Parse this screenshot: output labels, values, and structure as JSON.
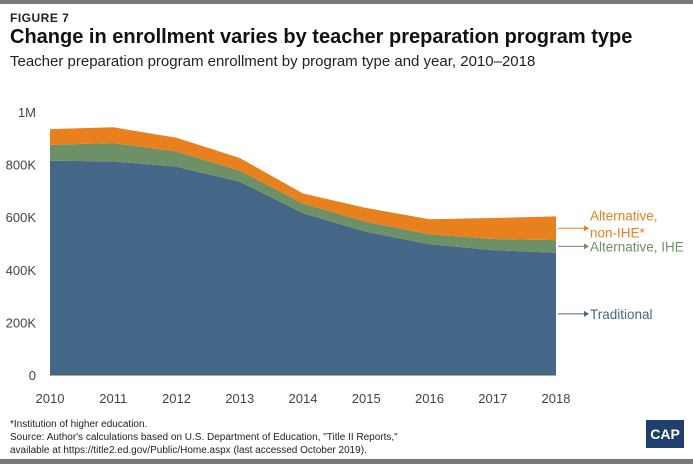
{
  "header": {
    "figure_label": "FIGURE 7",
    "title": "Change in enrollment varies by teacher preparation program type",
    "subtitle": "Teacher preparation program enrollment by program type and year, 2010–2018"
  },
  "chart_data": {
    "type": "area",
    "stacked": true,
    "categories": [
      "2010",
      "2011",
      "2012",
      "2013",
      "2014",
      "2015",
      "2016",
      "2017",
      "2018"
    ],
    "x": [
      2010,
      2011,
      2012,
      2013,
      2014,
      2015,
      2016,
      2017,
      2018
    ],
    "series": [
      {
        "name": "Traditional",
        "color": "#456788",
        "values": [
          815000,
          812000,
          792000,
          735000,
          615000,
          545000,
          497000,
          475000,
          465000
        ]
      },
      {
        "name": "Alternative, IHE",
        "color": "#6e9066",
        "values": [
          60000,
          70000,
          58000,
          42000,
          37000,
          37000,
          38000,
          42000,
          48000
        ]
      },
      {
        "name": "Alternative, non-IHE*",
        "color": "#e8801e",
        "values": [
          60000,
          60000,
          52000,
          48000,
          38000,
          53000,
          57000,
          80000,
          90000
        ]
      }
    ],
    "legend_labels": [
      {
        "series": "Alternative, non-IHE*",
        "lines": [
          "Alternative,",
          "non-IHE*"
        ],
        "color": "#e8801e"
      },
      {
        "series": "Alternative, IHE",
        "lines": [
          "Alternative, IHE"
        ],
        "color": "#6e9066"
      },
      {
        "series": "Traditional",
        "lines": [
          "Traditional"
        ],
        "color": "#456788"
      }
    ],
    "legend_placement": "right",
    "y_ticks": [
      {
        "value": 0,
        "label": "0"
      },
      {
        "value": 200000,
        "label": "200K"
      },
      {
        "value": 400000,
        "label": "400K"
      },
      {
        "value": 600000,
        "label": "600K"
      },
      {
        "value": 800000,
        "label": "800K"
      },
      {
        "value": 1000000,
        "label": "1M"
      }
    ],
    "ylim": [
      0,
      1000000
    ],
    "grid": false,
    "title": "",
    "xlabel": "",
    "ylabel": ""
  },
  "footer": {
    "note": "*Institution of higher education.",
    "source_line1": "Source: Author's calculations based on U.S. Department of Education, \"Title II Reports,\"",
    "source_line2": "available at https://title2.ed.gov/Public/Home.aspx (last accessed October 2019).",
    "logo_text": "CAP"
  }
}
